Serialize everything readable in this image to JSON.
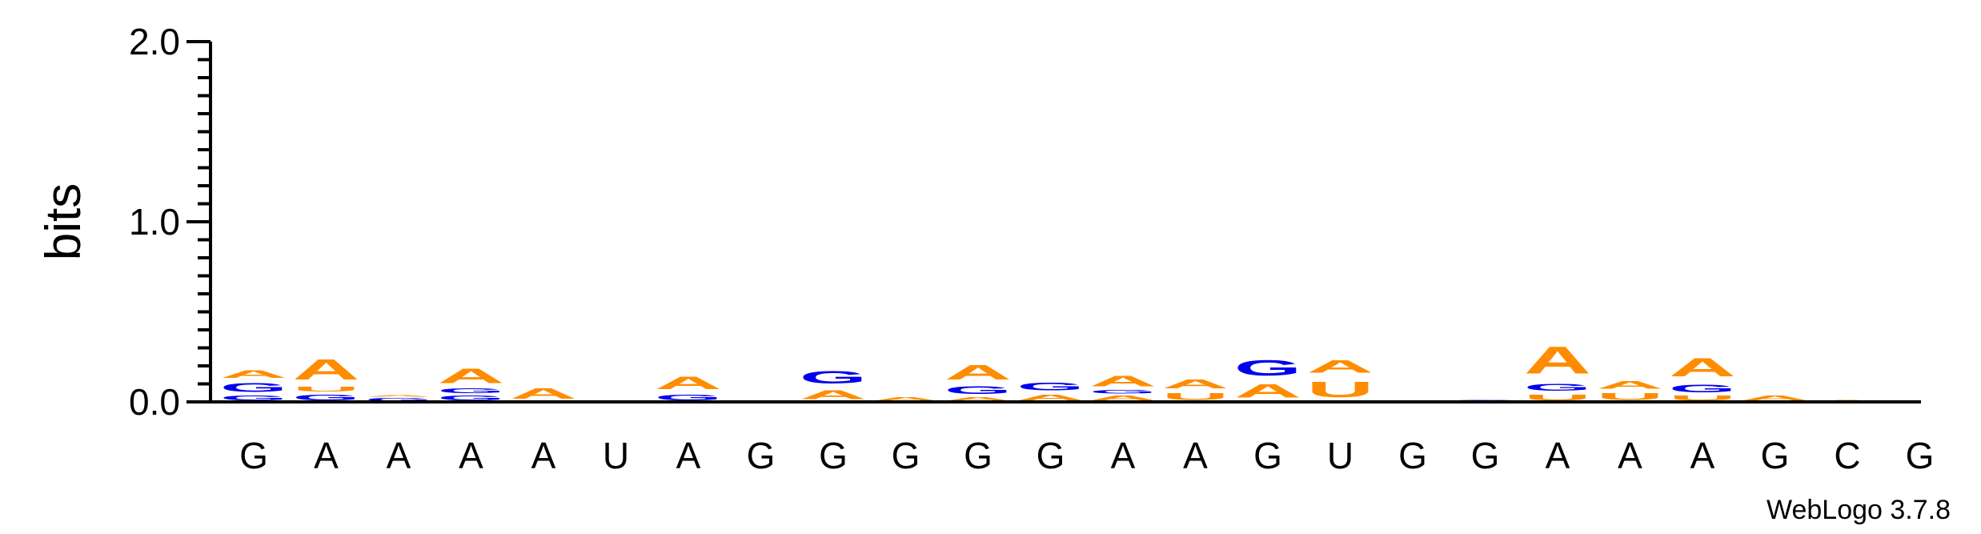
{
  "chart_data": {
    "type": "sequence-logo",
    "ylabel": "bits",
    "ylim": [
      0,
      2.0
    ],
    "y_ticks": [
      "0.0",
      "1.0",
      "2.0"
    ],
    "x_labels": [
      "G",
      "A",
      "A",
      "A",
      "A",
      "U",
      "A",
      "G",
      "G",
      "G",
      "G",
      "G",
      "A",
      "A",
      "G",
      "U",
      "G",
      "G",
      "A",
      "A",
      "A",
      "G",
      "C",
      "G"
    ],
    "colors": {
      "A": "#ff8c00",
      "U": "#ff8c00",
      "G": "#0000ee",
      "C": "#0000ee"
    },
    "positions": [
      [
        {
          "l": "G",
          "v": 0.04
        },
        {
          "l": "G",
          "v": 0.08
        },
        {
          "l": "A",
          "v": 0.07
        }
      ],
      [
        {
          "l": "G",
          "v": 0.05
        },
        {
          "l": "U",
          "v": 0.04
        },
        {
          "l": "A",
          "v": 0.18
        }
      ],
      [
        {
          "l": "G",
          "v": 0.025
        },
        {
          "l": "A",
          "v": 0.015
        }
      ],
      [
        {
          "l": "G",
          "v": 0.04
        },
        {
          "l": "G",
          "v": 0.04
        },
        {
          "l": "A",
          "v": 0.13
        }
      ],
      [
        {
          "l": "A",
          "v": 0.09
        }
      ],
      [
        {
          "l": "A",
          "v": 0.005
        }
      ],
      [
        {
          "l": "G",
          "v": 0.05
        },
        {
          "l": "A",
          "v": 0.11
        }
      ],
      [
        {
          "l": "G",
          "v": 0.003
        }
      ],
      [
        {
          "l": "A",
          "v": 0.08
        },
        {
          "l": "G",
          "v": 0.11
        }
      ],
      [
        {
          "l": "A",
          "v": 0.03
        }
      ],
      [
        {
          "l": "A",
          "v": 0.03
        },
        {
          "l": "G",
          "v": 0.07
        },
        {
          "l": "A",
          "v": 0.13
        }
      ],
      [
        {
          "l": "A",
          "v": 0.05
        },
        {
          "l": "G",
          "v": 0.07
        }
      ],
      [
        {
          "l": "A",
          "v": 0.04
        },
        {
          "l": "G",
          "v": 0.03
        },
        {
          "l": "A",
          "v": 0.09
        }
      ],
      [
        {
          "l": "U",
          "v": 0.06
        },
        {
          "l": "A",
          "v": 0.08
        }
      ],
      [
        {
          "l": "A",
          "v": 0.12
        },
        {
          "l": "G",
          "v": 0.14
        }
      ],
      [
        {
          "l": "U",
          "v": 0.14
        },
        {
          "l": "A",
          "v": 0.11
        }
      ],
      [],
      [
        {
          "l": "G",
          "v": 0.015
        }
      ],
      [
        {
          "l": "U",
          "v": 0.05
        },
        {
          "l": "G",
          "v": 0.06
        },
        {
          "l": "A",
          "v": 0.24
        }
      ],
      [
        {
          "l": "U",
          "v": 0.06
        },
        {
          "l": "A",
          "v": 0.07
        }
      ],
      [
        {
          "l": "U",
          "v": 0.04
        },
        {
          "l": "G",
          "v": 0.07
        },
        {
          "l": "A",
          "v": 0.16
        }
      ],
      [
        {
          "l": "A",
          "v": 0.04
        }
      ],
      [
        {
          "l": "A",
          "v": 0.015
        }
      ],
      []
    ]
  },
  "credit": "WebLogo 3.7.8"
}
